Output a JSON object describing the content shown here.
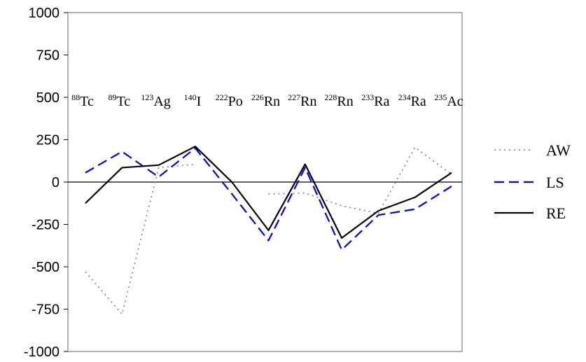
{
  "chart_data": {
    "type": "line",
    "title": "",
    "xlabel": "",
    "ylabel": "",
    "ylim": [
      -1000,
      1000
    ],
    "yticks": [
      1000,
      750,
      500,
      250,
      0,
      -250,
      -500,
      -750,
      -1000
    ],
    "ytick_labels": [
      "1000",
      "750",
      "500",
      "250",
      "0",
      "-250",
      "-500",
      "-750",
      "-1000"
    ],
    "grid": false,
    "legend_position": "right",
    "categories": [
      {
        "mass": "88",
        "element": "Tc"
      },
      {
        "mass": "89",
        "element": "Tc"
      },
      {
        "mass": "123",
        "element": "Ag"
      },
      {
        "mass": "140",
        "element": "I"
      },
      {
        "mass": "222",
        "element": "Po"
      },
      {
        "mass": "226",
        "element": "Rn"
      },
      {
        "mass": "227",
        "element": "Rn"
      },
      {
        "mass": "228",
        "element": "Rn"
      },
      {
        "mass": "233",
        "element": "Ra"
      },
      {
        "mass": "234",
        "element": "Ra"
      },
      {
        "mass": "235",
        "element": "Ac"
      }
    ],
    "series": [
      {
        "name": "AW",
        "style": "dotted",
        "color": "#808080",
        "values": [
          -530,
          -780,
          85,
          105,
          null,
          -70,
          -65,
          -140,
          -185,
          205,
          45
        ]
      },
      {
        "name": "LS",
        "style": "dashed",
        "color": "#0000ee",
        "values": [
          55,
          180,
          30,
          200,
          -70,
          -345,
          85,
          -400,
          -195,
          -160,
          -25
        ]
      },
      {
        "name": "RE",
        "style": "solid",
        "color": "#000000",
        "values": [
          -125,
          85,
          100,
          210,
          0,
          -285,
          105,
          -330,
          -170,
          -90,
          55
        ]
      }
    ]
  }
}
